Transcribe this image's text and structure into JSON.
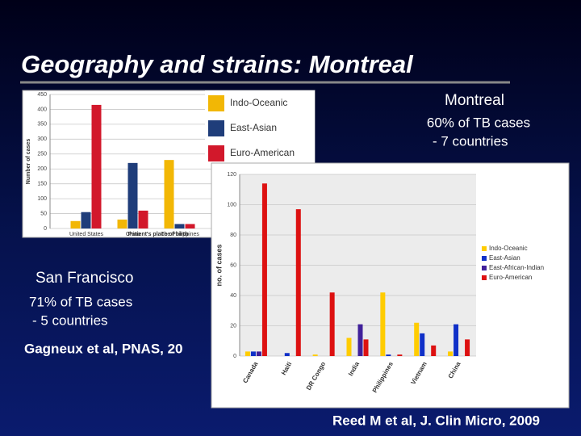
{
  "title": "Geography and strains: Montreal",
  "montreal": {
    "heading": "Montreal",
    "line1": "60% of TB cases",
    "line2": "- 7 countries"
  },
  "san_francisco": {
    "heading": "San Francisco",
    "line1": "71% of TB cases",
    "line2": "- 5 countries"
  },
  "citation_left": "Gagneux et al, PNAS, 20",
  "citation_right": "Reed M et al, J. Clin Micro, 2009",
  "chart_data": [
    {
      "type": "bar",
      "ylabel": "Number of cases",
      "xlabel": "Patient's place of birth",
      "categories": [
        "United States",
        "China",
        "The Philippines"
      ],
      "series": [
        {
          "name": "Indo-Oceanic",
          "color": "#f2b705",
          "values": [
            25,
            30,
            230
          ]
        },
        {
          "name": "East-Asian",
          "color": "#1f3d7a",
          "values": [
            55,
            220,
            15
          ]
        },
        {
          "name": "Euro-American",
          "color": "#d2182b",
          "values": [
            415,
            60,
            15
          ]
        }
      ],
      "ylim": [
        0,
        450
      ],
      "yticks": [
        0,
        50,
        100,
        150,
        200,
        250,
        300,
        350,
        400,
        450
      ],
      "grid": true,
      "legend": "upper right"
    },
    {
      "type": "bar",
      "ylabel": "no. of cases",
      "categories": [
        "Canada",
        "Haiti",
        "DR Congo",
        "India",
        "Philippines",
        "Vietnam",
        "China"
      ],
      "series": [
        {
          "name": "Indo-Oceanic",
          "color": "#ffcc00",
          "values": [
            3,
            0,
            1,
            12,
            42,
            22,
            3
          ]
        },
        {
          "name": "East-Asian",
          "color": "#1030c8",
          "values": [
            3,
            2,
            0,
            0,
            1,
            15,
            21
          ]
        },
        {
          "name": "East-African-Indian",
          "color": "#40209a",
          "values": [
            3,
            0,
            0,
            21,
            0,
            0,
            0
          ]
        },
        {
          "name": "Euro-American",
          "color": "#dd1111",
          "values": [
            114,
            97,
            42,
            11,
            1,
            7,
            11
          ]
        }
      ],
      "ylim": [
        0,
        120
      ],
      "yticks": [
        0,
        20,
        40,
        60,
        80,
        100,
        120
      ],
      "grid": true,
      "legend": "right"
    }
  ]
}
